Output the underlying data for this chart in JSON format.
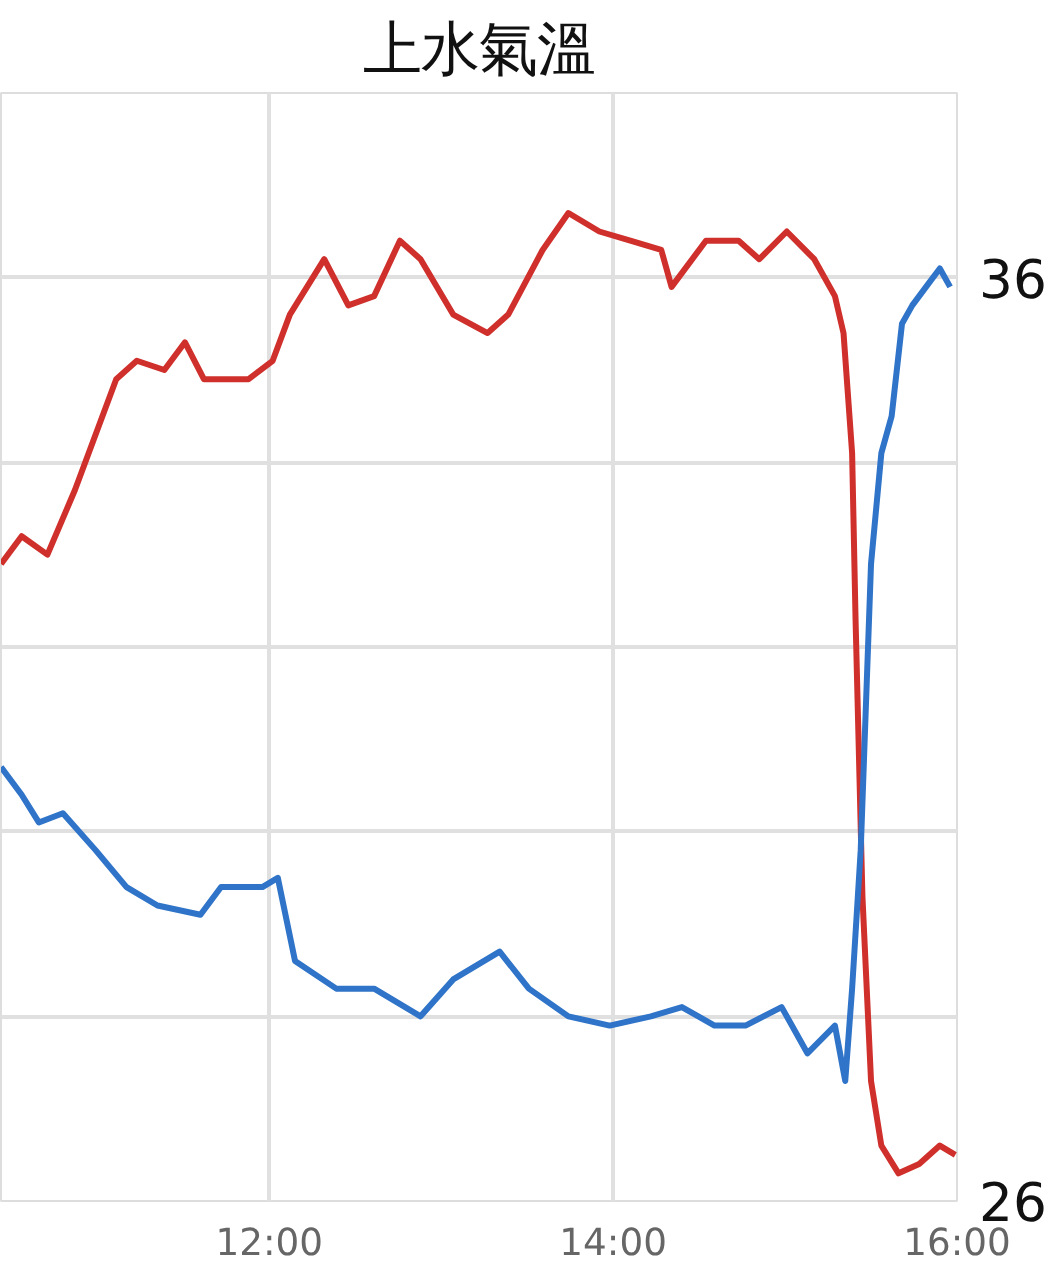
{
  "chart_data": {
    "type": "line",
    "title": "上水氣溫",
    "x": [
      10.44,
      10.56,
      10.71,
      10.87,
      11.11,
      11.23,
      11.39,
      11.51,
      11.62,
      11.88,
      12.02,
      12.12,
      12.32,
      12.46,
      12.61,
      12.76,
      12.88,
      13.07,
      13.27,
      13.39,
      13.59,
      13.74,
      13.92,
      14.1,
      14.28,
      14.34,
      14.54,
      14.73,
      14.85,
      15.01,
      15.17,
      15.29,
      15.34,
      15.39,
      15.41,
      15.45,
      15.5,
      15.56,
      15.66,
      15.78,
      15.9,
      15.99
    ],
    "series": [
      {
        "color": "#d0302c",
        "values": [
          32.9,
          33.2,
          33.0,
          33.7,
          34.9,
          35.1,
          35.0,
          35.3,
          34.9,
          34.9,
          35.1,
          35.6,
          36.2,
          35.7,
          35.8,
          36.4,
          36.2,
          35.6,
          35.4,
          35.6,
          36.3,
          36.7,
          36.5,
          36.4,
          36.3,
          35.9,
          36.4,
          36.4,
          36.2,
          36.5,
          36.2,
          35.8,
          35.4,
          34.1,
          32.3,
          29.3,
          27.3,
          26.6,
          26.3,
          26.4,
          26.6,
          26.5
        ]
      },
      {
        "color": "#2f74c8",
        "x": [
          10.44,
          10.56,
          10.66,
          10.8,
          10.99,
          11.17,
          11.35,
          11.6,
          11.72,
          11.96,
          12.05,
          12.15,
          12.39,
          12.61,
          12.88,
          13.07,
          13.34,
          13.51,
          13.74,
          13.98,
          14.22,
          14.4,
          14.59,
          14.77,
          14.98,
          15.13,
          15.29,
          15.35,
          15.39,
          15.44,
          15.5,
          15.56,
          15.62,
          15.68,
          15.74,
          15.82,
          15.9,
          15.96
        ],
        "values": [
          30.7,
          30.4,
          30.1,
          30.2,
          29.8,
          29.4,
          29.2,
          29.1,
          29.4,
          29.4,
          29.5,
          28.6,
          28.3,
          28.3,
          28.0,
          28.4,
          28.7,
          28.3,
          28.0,
          27.9,
          28.0,
          28.1,
          27.9,
          27.9,
          28.1,
          27.6,
          27.9,
          27.3,
          28.3,
          29.8,
          32.9,
          34.1,
          34.5,
          35.5,
          35.7,
          35.9,
          36.1,
          35.9
        ]
      }
    ],
    "xlim": [
      10.44,
      16
    ],
    "xticks": [
      {
        "value": 12,
        "label": "12:00"
      },
      {
        "value": 14,
        "label": "14:00"
      },
      {
        "value": 16,
        "label": "16:00"
      }
    ],
    "ylim": [
      26,
      38
    ],
    "yticks": [
      26,
      {
        "value": 28,
        "label": null
      },
      {
        "value": 30,
        "label": null
      },
      {
        "value": 32,
        "label": null
      },
      {
        "value": 34,
        "label": null
      },
      36,
      {
        "value": 38,
        "label": null
      }
    ],
    "grid": true,
    "line_style": "solid"
  }
}
